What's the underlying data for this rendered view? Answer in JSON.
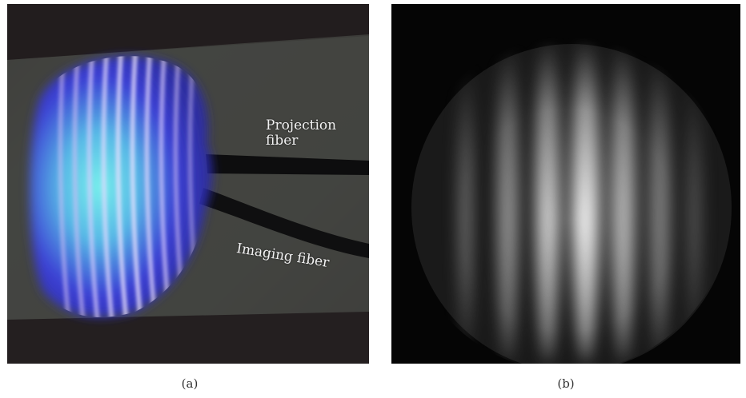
{
  "figure": {
    "panel_a": {
      "caption": "(a)",
      "labels": {
        "projection_line1": "Projection",
        "projection_line2": "fiber",
        "imaging": "Imaging fiber"
      },
      "colors": {
        "background": "#3a3b38",
        "glow_outer": "#3a3ad8",
        "glow_inner": "#6fe3e6",
        "fringe": "#c8b8ff"
      }
    },
    "panel_b": {
      "caption": "(b)",
      "colors": {
        "background": "#050505",
        "fringe": "#d8d8d8"
      }
    }
  }
}
